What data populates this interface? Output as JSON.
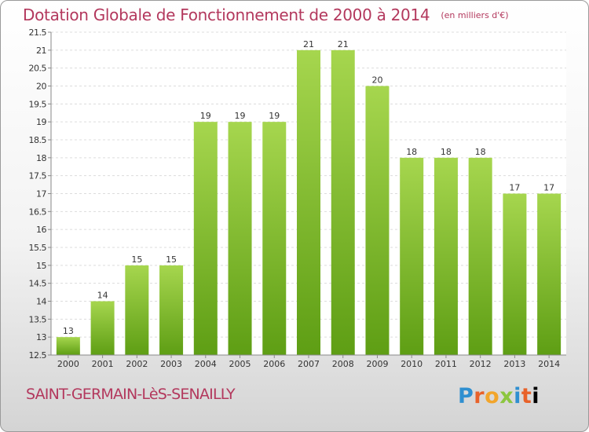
{
  "header": {
    "title": "Dotation Globale de Fonctionnement de 2000 à 2014",
    "unit": "(en milliers d'€)"
  },
  "footer": {
    "commune": "SAINT-GERMAIN-LèS-SENAILLY",
    "logo_letters": [
      "P",
      "r",
      "o",
      "x",
      "i",
      "t",
      "i"
    ]
  },
  "colors": {
    "title": "#b3385d",
    "bar_top": "#a6d64e",
    "bar_bottom": "#5e9e14"
  },
  "chart_data": {
    "type": "bar",
    "title": "Dotation Globale de Fonctionnement de 2000 à 2014",
    "xlabel": "",
    "ylabel": "",
    "categories": [
      "2000",
      "2001",
      "2002",
      "2003",
      "2004",
      "2005",
      "2006",
      "2007",
      "2008",
      "2009",
      "2010",
      "2011",
      "2012",
      "2013",
      "2014"
    ],
    "values": [
      13,
      14,
      15,
      15,
      19,
      19,
      19,
      21,
      21,
      20,
      18,
      18,
      18,
      17,
      17
    ],
    "ylim": [
      12.5,
      21.5
    ],
    "yticks": [
      "12.5",
      "13",
      "13.5",
      "14",
      "14.5",
      "15",
      "15.5",
      "16",
      "16.5",
      "17",
      "17.5",
      "18",
      "18.5",
      "19",
      "19.5",
      "20",
      "20.5",
      "21",
      "21.5"
    ],
    "grid": true
  }
}
